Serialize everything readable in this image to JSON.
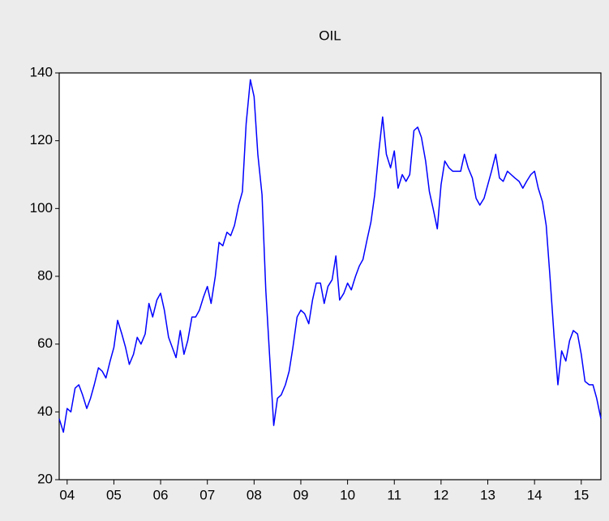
{
  "chart_data": {
    "type": "line",
    "title": "OIL",
    "x": [
      2004.33,
      2004.42,
      2004.5,
      2004.58,
      2004.67,
      2004.75,
      2004.83,
      2004.92,
      2005,
      2005.08,
      2005.17,
      2005.25,
      2005.33,
      2005.42,
      2005.5,
      2005.58,
      2005.67,
      2005.75,
      2005.83,
      2005.92,
      2006,
      2006.08,
      2006.17,
      2006.25,
      2006.33,
      2006.42,
      2006.5,
      2006.58,
      2006.67,
      2006.75,
      2006.83,
      2006.92,
      2007,
      2007.08,
      2007.17,
      2007.25,
      2007.33,
      2007.42,
      2007.5,
      2007.58,
      2007.67,
      2007.75,
      2007.83,
      2007.92,
      2008,
      2008.08,
      2008.17,
      2008.25,
      2008.33,
      2008.42,
      2008.5,
      2008.58,
      2008.67,
      2008.75,
      2008.83,
      2008.92,
      2009,
      2009.08,
      2009.17,
      2009.25,
      2009.33,
      2009.42,
      2009.5,
      2009.58,
      2009.67,
      2009.75,
      2009.83,
      2009.92,
      2010,
      2010.08,
      2010.17,
      2010.25,
      2010.33,
      2010.42,
      2010.5,
      2010.58,
      2010.67,
      2010.75,
      2010.83,
      2010.92,
      2011,
      2011.08,
      2011.17,
      2011.25,
      2011.33,
      2011.42,
      2011.5,
      2011.58,
      2011.67,
      2011.75,
      2011.83,
      2011.92,
      2012,
      2012.08,
      2012.17,
      2012.25,
      2012.33,
      2012.42,
      2012.5,
      2012.58,
      2012.67,
      2012.75,
      2012.83,
      2012.92,
      2013,
      2013.08,
      2013.17,
      2013.25,
      2013.33,
      2013.42,
      2013.5,
      2013.58,
      2013.67,
      2013.75,
      2013.83,
      2013.92,
      2014,
      2014.08,
      2014.17,
      2014.25,
      2014.33,
      2014.42,
      2014.5,
      2014.58,
      2014.67,
      2014.75,
      2014.83,
      2014.92,
      2015,
      2015.08,
      2015.17,
      2015.25,
      2015.33,
      2015.42,
      2015.5,
      2015.58,
      2015.67,
      2015.75,
      2015.83,
      2015.92
    ],
    "series": [
      {
        "name": "OIL",
        "color": "#0000ff",
        "values": [
          38,
          34,
          41,
          40,
          47,
          48,
          45,
          41,
          44,
          48,
          53,
          52,
          50,
          55,
          59,
          67,
          63,
          59,
          54,
          57,
          62,
          60,
          63,
          72,
          68,
          73,
          75,
          70,
          62,
          59,
          56,
          64,
          57,
          61,
          68,
          68,
          70,
          74,
          77,
          72,
          80,
          90,
          89,
          93,
          92,
          95,
          101,
          105,
          125,
          138,
          133,
          116,
          104,
          76,
          57,
          36,
          44,
          45,
          48,
          52,
          59,
          68,
          70,
          69,
          66,
          73,
          78,
          78,
          72,
          77,
          79,
          86,
          73,
          75,
          78,
          76,
          80,
          83,
          85,
          91,
          96,
          104,
          117,
          127,
          116,
          112,
          117,
          106,
          110,
          108,
          110,
          123,
          124,
          121,
          114,
          105,
          100,
          94,
          107,
          114,
          112,
          111,
          111,
          111,
          116,
          112,
          109,
          103,
          101,
          103,
          107,
          111,
          116,
          109,
          108,
          111,
          110,
          109,
          108,
          106,
          108,
          110,
          111,
          106,
          102,
          95,
          80,
          62,
          48,
          58,
          55,
          61,
          64,
          63,
          57,
          49,
          48,
          48,
          44,
          38
        ]
      }
    ],
    "xlim": [
      2004.33,
      2015.92
    ],
    "xticks": [
      {
        "value": 2004.5,
        "label": "04"
      },
      {
        "value": 2005.5,
        "label": "05"
      },
      {
        "value": 2006.5,
        "label": "06"
      },
      {
        "value": 2007.5,
        "label": "07"
      },
      {
        "value": 2008.5,
        "label": "08"
      },
      {
        "value": 2009.5,
        "label": "09"
      },
      {
        "value": 2010.5,
        "label": "10"
      },
      {
        "value": 2011.5,
        "label": "11"
      },
      {
        "value": 2012.5,
        "label": "12"
      },
      {
        "value": 2013.5,
        "label": "13"
      },
      {
        "value": 2014.5,
        "label": "14"
      },
      {
        "value": 2015.5,
        "label": "15"
      }
    ],
    "ylim": [
      20,
      140
    ],
    "yticks": [
      20,
      40,
      60,
      80,
      100,
      120,
      140
    ],
    "grid": false
  }
}
